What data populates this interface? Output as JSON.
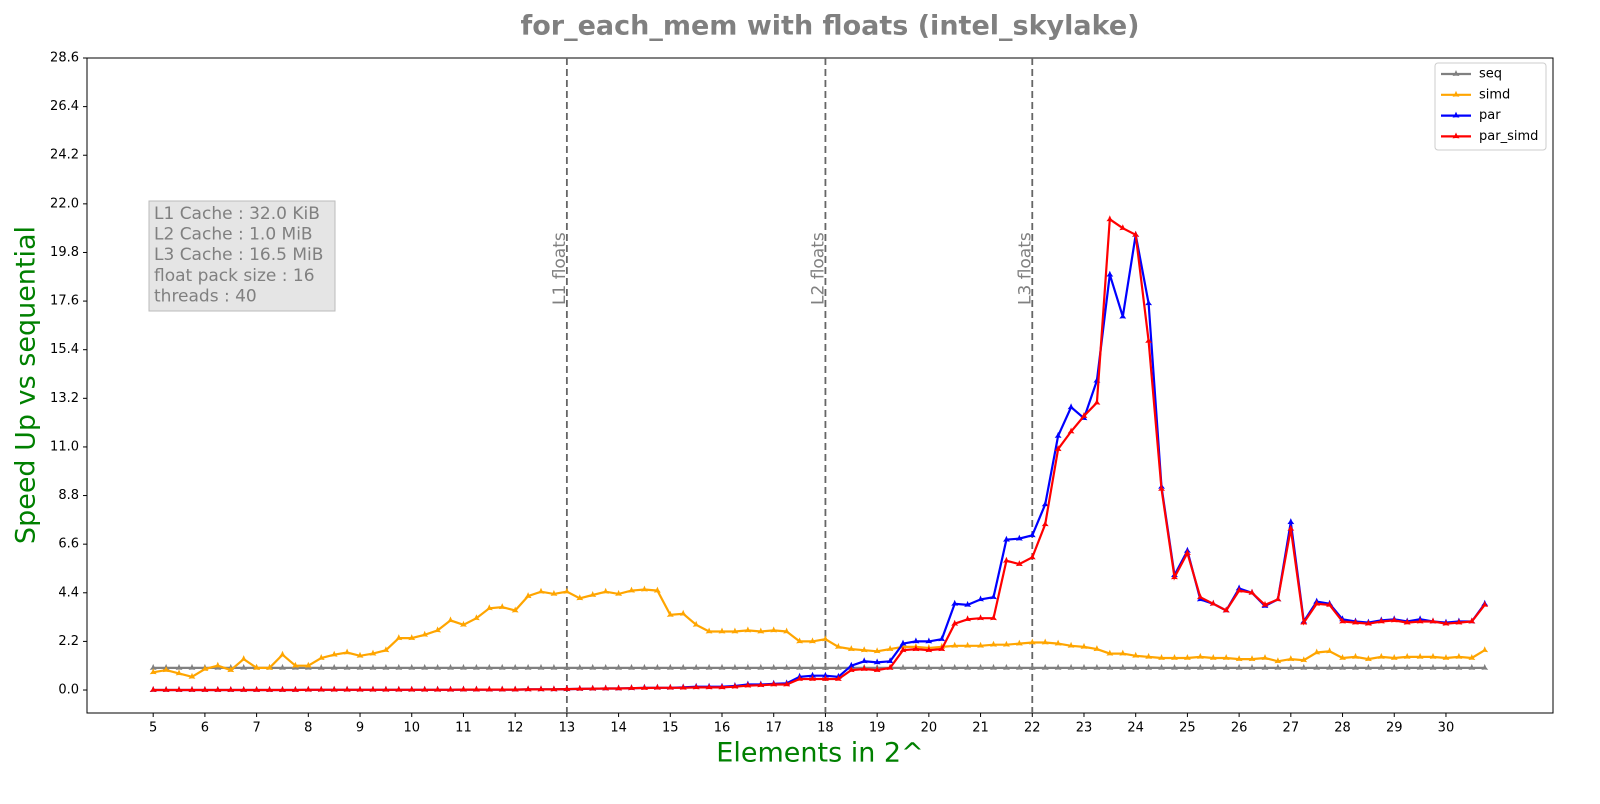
{
  "chart_data": {
    "type": "line",
    "title": "for_each_mem with floats  (intel_skylake)",
    "xlabel": "Elements in 2^",
    "ylabel": "Speed Up vs sequential",
    "xlim": [
      3.72,
      32.07
    ],
    "ylim": [
      -1.04,
      28.6
    ],
    "xticks": [
      5,
      6,
      7,
      8,
      9,
      10,
      11,
      12,
      13,
      14,
      15,
      16,
      17,
      18,
      19,
      20,
      21,
      22,
      23,
      24,
      25,
      26,
      27,
      28,
      29,
      30
    ],
    "yticks": [
      {
        "value": 0,
        "label": "0.0"
      },
      2.2,
      4.4,
      6.6,
      8.8,
      {
        "value": 11,
        "label": "11.0"
      },
      13.2,
      15.4,
      17.6,
      19.8,
      {
        "value": 22,
        "label": "22.0"
      },
      24.2,
      26.4,
      28.6
    ],
    "grid": false,
    "legend": "upper right",
    "vlines": [
      {
        "x": 13,
        "label": "L1 floats"
      },
      {
        "x": 18,
        "label": "L2 floats"
      },
      {
        "x": 22,
        "label": "L3 floats"
      }
    ],
    "annotation": [
      "L1 Cache : 32.0 KiB",
      "L2 Cache : 1.0 MiB",
      "L3 Cache : 16.5 MiB",
      "float pack size : 16",
      "threads : 40"
    ],
    "x": [
      5,
      5.25,
      5.5,
      5.75,
      6,
      6.25,
      6.5,
      6.75,
      7,
      7.25,
      7.5,
      7.75,
      8,
      8.25,
      8.5,
      8.75,
      9,
      9.25,
      9.5,
      9.75,
      10,
      10.25,
      10.5,
      10.75,
      11,
      11.25,
      11.5,
      11.75,
      12,
      12.25,
      12.5,
      12.75,
      13,
      13.25,
      13.5,
      13.75,
      14,
      14.25,
      14.5,
      14.75,
      15,
      15.25,
      15.5,
      15.75,
      16,
      16.25,
      16.5,
      16.75,
      17,
      17.25,
      17.5,
      17.75,
      18,
      18.25,
      18.5,
      18.75,
      19,
      19.25,
      19.5,
      19.75,
      20,
      20.25,
      20.5,
      20.75,
      21,
      21.25,
      21.5,
      21.75,
      22,
      22.25,
      22.5,
      22.75,
      23,
      23.25,
      23.5,
      23.75,
      24,
      24.25,
      24.5,
      24.75,
      25,
      25.25,
      25.5,
      25.75,
      26,
      26.25,
      26.5,
      26.75,
      27,
      27.25,
      27.5,
      27.75,
      28,
      28.25,
      28.5,
      28.75,
      29,
      29.25,
      29.5,
      29.75,
      30,
      30.25,
      30.5,
      30.75
    ],
    "series": [
      {
        "name": "seq",
        "color": "#808080",
        "values": [
          1,
          1,
          1,
          1,
          1,
          1,
          1,
          1,
          1,
          1,
          1,
          1,
          1,
          1,
          1,
          1,
          1,
          1,
          1,
          1,
          1,
          1,
          1,
          1,
          1,
          1,
          1,
          1,
          1,
          1,
          1,
          1,
          1,
          1,
          1,
          1,
          1,
          1,
          1,
          1,
          1,
          1,
          1,
          1,
          1,
          1,
          1,
          1,
          1,
          1,
          1,
          1,
          1,
          1,
          1,
          1,
          1,
          1,
          1,
          1,
          1,
          1,
          1,
          1,
          1,
          1,
          1,
          1,
          1,
          1,
          1,
          1,
          1,
          1,
          1,
          1,
          1,
          1,
          1,
          1,
          1,
          1,
          1,
          1,
          1,
          1,
          1,
          1,
          1,
          1,
          1,
          1,
          1,
          1,
          1,
          1,
          1,
          1,
          1,
          1,
          1,
          1,
          1,
          1
        ]
      },
      {
        "name": "simd",
        "color": "#ffa500",
        "values": [
          0.8,
          0.9,
          0.75,
          0.6,
          0.95,
          1.1,
          0.9,
          1.4,
          1.0,
          1.0,
          1.6,
          1.1,
          1.1,
          1.45,
          1.6,
          1.7,
          1.55,
          1.65,
          1.8,
          2.35,
          2.35,
          2.5,
          2.7,
          3.15,
          2.95,
          3.25,
          3.7,
          3.75,
          3.6,
          4.25,
          4.45,
          4.35,
          4.45,
          4.15,
          4.3,
          4.45,
          4.35,
          4.5,
          4.55,
          4.5,
          3.4,
          3.45,
          2.95,
          2.65,
          2.65,
          2.65,
          2.7,
          2.65,
          2.7,
          2.65,
          2.2,
          2.2,
          2.3,
          1.95,
          1.85,
          1.8,
          1.75,
          1.85,
          1.95,
          1.95,
          1.9,
          1.95,
          2.0,
          2.0,
          2.0,
          2.05,
          2.05,
          2.1,
          2.15,
          2.15,
          2.1,
          2.0,
          1.95,
          1.85,
          1.65,
          1.65,
          1.55,
          1.5,
          1.45,
          1.45,
          1.45,
          1.5,
          1.45,
          1.45,
          1.4,
          1.4,
          1.45,
          1.3,
          1.4,
          1.35,
          1.7,
          1.75,
          1.45,
          1.5,
          1.4,
          1.5,
          1.45,
          1.5,
          1.5,
          1.5,
          1.45,
          1.5,
          1.45,
          1.8
        ]
      },
      {
        "name": "par",
        "color": "#0000ff",
        "values": [
          0,
          0,
          0,
          0,
          0,
          0,
          0,
          0,
          0,
          0,
          0,
          0,
          0.01,
          0.01,
          0.01,
          0.01,
          0.01,
          0.01,
          0.01,
          0.01,
          0.01,
          0.01,
          0.01,
          0.01,
          0.02,
          0.02,
          0.02,
          0.02,
          0.02,
          0.03,
          0.03,
          0.03,
          0.04,
          0.05,
          0.06,
          0.07,
          0.07,
          0.08,
          0.1,
          0.1,
          0.1,
          0.12,
          0.15,
          0.15,
          0.15,
          0.18,
          0.25,
          0.25,
          0.28,
          0.3,
          0.6,
          0.65,
          0.65,
          0.6,
          1.1,
          1.3,
          1.25,
          1.3,
          2.1,
          2.2,
          2.2,
          2.3,
          3.9,
          3.85,
          4.1,
          4.2,
          6.8,
          6.85,
          7.0,
          8.4,
          11.5,
          12.8,
          12.3,
          14.0,
          18.8,
          16.9,
          20.6,
          17.5,
          9.2,
          5.2,
          6.3,
          4.1,
          3.9,
          3.6,
          4.6,
          4.4,
          3.8,
          4.1,
          7.6,
          3.1,
          4.0,
          3.9,
          3.2,
          3.1,
          3.05,
          3.15,
          3.2,
          3.1,
          3.2,
          3.1,
          3.05,
          3.1,
          3.1,
          3.9
        ]
      },
      {
        "name": "par_simd",
        "color": "#ff0000",
        "values": [
          0,
          0,
          0,
          0,
          0,
          0,
          0,
          0,
          0,
          0,
          0,
          0,
          0.01,
          0.01,
          0.01,
          0.01,
          0.01,
          0.01,
          0.01,
          0.01,
          0.01,
          0.01,
          0.01,
          0.01,
          0.02,
          0.02,
          0.02,
          0.02,
          0.02,
          0.03,
          0.03,
          0.03,
          0.04,
          0.05,
          0.06,
          0.07,
          0.07,
          0.08,
          0.09,
          0.1,
          0.1,
          0.1,
          0.12,
          0.12,
          0.12,
          0.15,
          0.2,
          0.22,
          0.25,
          0.25,
          0.5,
          0.5,
          0.5,
          0.5,
          0.9,
          0.95,
          0.9,
          1.0,
          1.8,
          1.85,
          1.8,
          1.85,
          3.0,
          3.2,
          3.25,
          3.25,
          5.85,
          5.7,
          6.0,
          7.5,
          10.9,
          11.7,
          12.4,
          13.0,
          21.3,
          20.9,
          20.6,
          15.8,
          9.1,
          5.1,
          6.2,
          4.2,
          3.9,
          3.6,
          4.5,
          4.4,
          3.85,
          4.1,
          7.3,
          3.05,
          3.9,
          3.85,
          3.1,
          3.05,
          3.0,
          3.1,
          3.15,
          3.05,
          3.1,
          3.1,
          3.0,
          3.05,
          3.1,
          3.85
        ]
      }
    ]
  }
}
